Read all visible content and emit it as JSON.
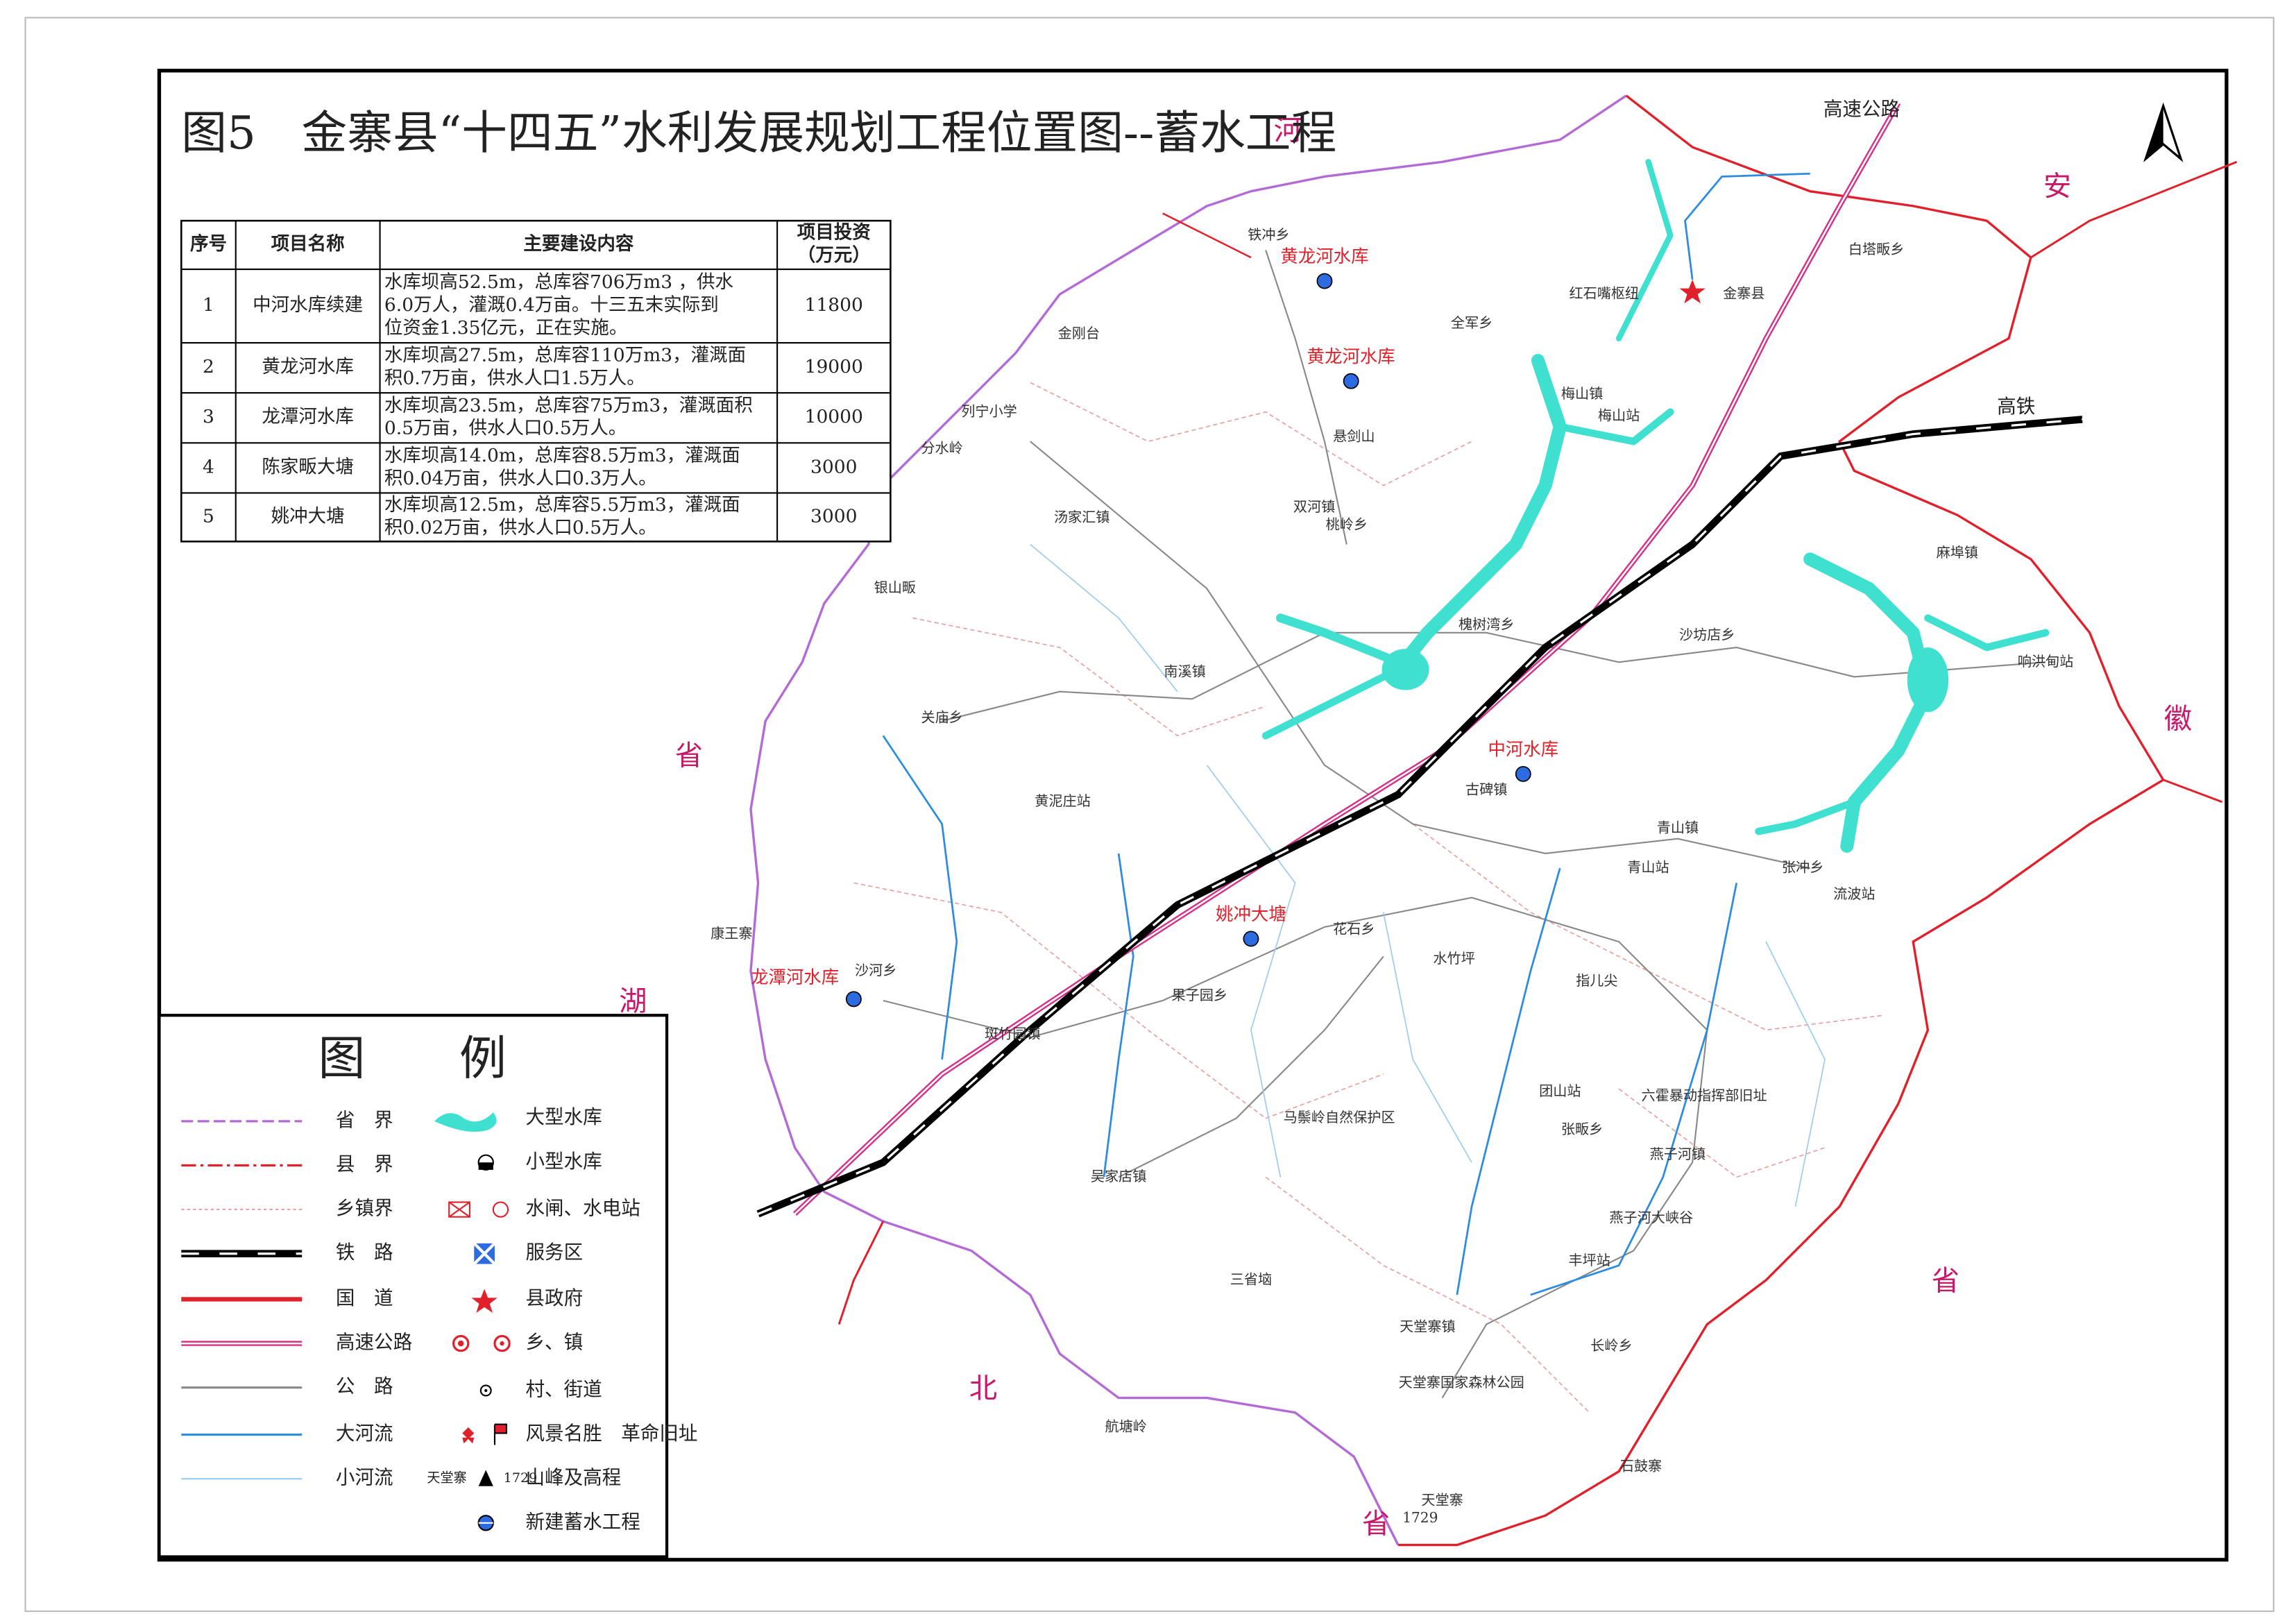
{
  "title": "图5　金寨县“十四五”水利发展规划工程位置图--蓄水工程",
  "table": {
    "headers": [
      "序号",
      "项目名称",
      "主要建设内容",
      [
        "项目投资",
        "（万元）"
      ]
    ],
    "rows": [
      [
        1,
        "中河水库续建",
        [
          "水库坝高52.5m，总库容706万m3 ，供水",
          "6.0万人，灌溉0.4万亩。十三五末实际到",
          "位资金1.35亿元，正在实施。"
        ],
        11800
      ],
      [
        2,
        "黄龙河水库",
        [
          "水库坝高27.5m，总库容110万m3，灌溉面",
          "积0.7万亩，供水人口1.5万人。"
        ],
        19000
      ],
      [
        3,
        "龙潭河水库",
        [
          "水库坝高23.5m，总库容75万m3，灌溉面积",
          "0.5万亩，供水人口0.5万人。"
        ],
        10000
      ],
      [
        4,
        "陈家畈大塘",
        [
          "水库坝高14.0m，总库容8.5万m3，灌溉面",
          "积0.04万亩，供水人口0.3万人。"
        ],
        3000
      ],
      [
        5,
        "姚冲大塘",
        [
          "水库坝高12.5m，总库容5.5万m3，灌溉面",
          "积0.02万亩，供水人口0.5万人。"
        ],
        3000
      ]
    ]
  },
  "legend": {
    "title": "图　　例",
    "left_items": [
      "省　界",
      "县　界",
      "乡镇界",
      "铁　路",
      "国　道",
      "高速公路",
      "公　路",
      "大河流",
      "小河流"
    ],
    "right_items": [
      "大型水库",
      "小型水库",
      "水闸、水电站",
      "服务区",
      "县政府",
      "乡、镇",
      "村、街道",
      "风景名胜　革命旧址",
      "山峰及高程",
      "新建蓄水工程"
    ],
    "peak_example_name": "天堂寨",
    "peak_example_elevation": 1729
  },
  "road_labels": [
    "高速公路",
    "高铁"
  ],
  "reservoir_labels": [
    "黄龙河水库",
    "黄龙河水库",
    "中河水库",
    "姚冲大塘",
    "龙潭河水库"
  ],
  "places": [
    "铁冲乡",
    "白塔畈乡",
    "红石嘴枢纽",
    "金寨县",
    "全军乡",
    "金刚台",
    "列宁小学",
    "分水岭",
    "梅山镇",
    "梅山站",
    "悬剑山",
    "双河镇",
    "汤家汇镇",
    "桃岭乡",
    "麻埠镇",
    "银山畈",
    "槐树湾乡",
    "沙坊店乡",
    "响洪甸站",
    "南溪镇",
    "关庙乡",
    "古碑镇",
    "黄泥庄站",
    "青山镇",
    "青山站",
    "张冲乡",
    "流波站",
    "康王寨",
    "花石乡",
    "沙河乡",
    "果子园乡",
    "水竹坪",
    "指儿尖",
    "斑竹园镇",
    "马鬃岭自然保护区",
    "团山站",
    "张畈乡",
    "六霍暴动指挥部旧址",
    "燕子河镇",
    "吴家店镇",
    "燕子河大峡谷",
    "丰坪站",
    "三省垴",
    "天堂寨镇",
    "长岭乡",
    "天堂寨国家森林公园",
    "航塘岭",
    "石鼓寨",
    "天堂寨",
    "1729"
  ],
  "region_labels": [
    "河",
    "安",
    "省",
    "湖",
    "北",
    "省",
    "徽",
    "省"
  ]
}
